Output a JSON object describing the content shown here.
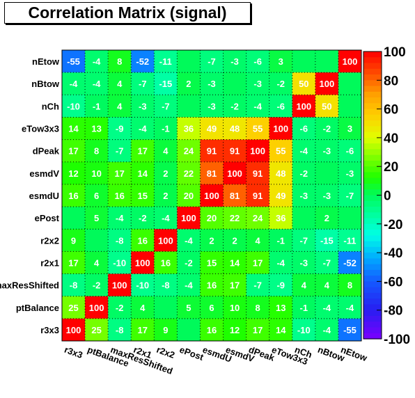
{
  "chart_data": {
    "type": "heatmap",
    "title": "Correlation Matrix (signal)",
    "labels": [
      "r3x3",
      "ptBalance",
      "maxResShifted",
      "r2x1",
      "r2x2",
      "ePost",
      "esmdU",
      "esmdV",
      "dPeak",
      "eTow3x3",
      "nCh",
      "nBtow",
      "nEtow"
    ],
    "zlim": [
      -100,
      100
    ],
    "colorbar_ticks": [
      "100",
      "80",
      "60",
      "40",
      "20",
      "0",
      "-20",
      "-40",
      "-60",
      "-80",
      "-100"
    ],
    "rows_top_to_bottom": [
      [
        "-55",
        "-4",
        "8",
        "-52",
        "-11",
        "",
        "-7",
        "-3",
        "-6",
        "3",
        "",
        "",
        "100"
      ],
      [
        "-4",
        "-4",
        "4",
        "-7",
        "-15",
        "2",
        "-3",
        "",
        "-3",
        "-2",
        "50",
        "100",
        ""
      ],
      [
        "-10",
        "-1",
        "4",
        "-3",
        "-7",
        "",
        "-3",
        "-2",
        "-4",
        "-6",
        "100",
        "50",
        ""
      ],
      [
        "14",
        "13",
        "-9",
        "-4",
        "-1",
        "36",
        "49",
        "48",
        "55",
        "100",
        "-6",
        "-2",
        "3"
      ],
      [
        "17",
        "8",
        "-7",
        "17",
        "4",
        "24",
        "91",
        "91",
        "100",
        "55",
        "-4",
        "-3",
        "-6"
      ],
      [
        "12",
        "10",
        "17",
        "14",
        "2",
        "22",
        "81",
        "100",
        "91",
        "48",
        "-2",
        "",
        "-3"
      ],
      [
        "16",
        "6",
        "16",
        "15",
        "2",
        "20",
        "100",
        "81",
        "91",
        "49",
        "-3",
        "-3",
        "-7"
      ],
      [
        "",
        "5",
        "-4",
        "-2",
        "-4",
        "100",
        "20",
        "22",
        "24",
        "36",
        "",
        "2",
        ""
      ],
      [
        "9",
        "",
        "-8",
        "16",
        "100",
        "-4",
        "2",
        "2",
        "4",
        "-1",
        "-7",
        "-15",
        "-11"
      ],
      [
        "17",
        "4",
        "-10",
        "100",
        "16",
        "-2",
        "15",
        "14",
        "17",
        "-4",
        "-3",
        "-7",
        "-52"
      ],
      [
        "-8",
        "-2",
        "100",
        "-10",
        "-8",
        "-4",
        "16",
        "17",
        "-7",
        "-9",
        "4",
        "4",
        "8"
      ],
      [
        "25",
        "100",
        "-2",
        "4",
        "",
        "5",
        "6",
        "10",
        "8",
        "13",
        "-1",
        "-4",
        "-4"
      ],
      [
        "100",
        "25",
        "-8",
        "17",
        "9",
        "",
        "16",
        "12",
        "17",
        "14",
        "-10",
        "-4",
        "-55"
      ]
    ]
  }
}
